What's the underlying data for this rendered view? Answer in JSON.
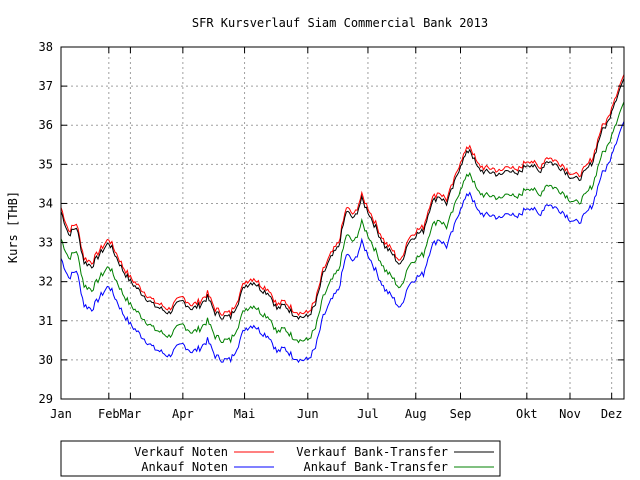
{
  "chart_data": {
    "type": "line",
    "title": "SFR Kursverlauf Siam Commercial Bank 2013",
    "xlabel": "",
    "ylabel": "Kurs [THB]",
    "ylim": [
      29,
      38
    ],
    "yticks": [
      "29",
      "30",
      "31",
      "32",
      "33",
      "34",
      "35",
      "36",
      "37",
      "38"
    ],
    "xlim": [
      0,
      365
    ],
    "grid": true,
    "legend_position": "bottom",
    "months": [
      {
        "label": "Jan",
        "day": 0
      },
      {
        "label": "Feb",
        "day": 31
      },
      {
        "label": "Mar",
        "day": 45
      },
      {
        "label": "Apr",
        "day": 79
      },
      {
        "label": "Mai",
        "day": 119
      },
      {
        "label": "Jun",
        "day": 160
      },
      {
        "label": "Jul",
        "day": 199
      },
      {
        "label": "Aug",
        "day": 230
      },
      {
        "label": "Sep",
        "day": 259
      },
      {
        "label": "Okt",
        "day": 302
      },
      {
        "label": "Nov",
        "day": 330
      },
      {
        "label": "Dez",
        "day": 357
      }
    ],
    "x": [
      0,
      5,
      10,
      15,
      20,
      25,
      31,
      35,
      40,
      45,
      50,
      55,
      60,
      65,
      70,
      75,
      79,
      85,
      90,
      95,
      100,
      105,
      110,
      115,
      119,
      125,
      130,
      135,
      140,
      145,
      150,
      155,
      160,
      165,
      170,
      175,
      180,
      185,
      190,
      195,
      199,
      205,
      210,
      215,
      220,
      225,
      230,
      235,
      240,
      245,
      250,
      255,
      259,
      265,
      270,
      275,
      280,
      285,
      290,
      295,
      302,
      305,
      310,
      315,
      320,
      325,
      330,
      335,
      340,
      345,
      350,
      355,
      357,
      360,
      365
    ],
    "series": [
      {
        "name": "Verkauf Noten",
        "color": "#ff0000",
        "values": [
          33.9,
          33.3,
          33.5,
          32.6,
          32.5,
          32.8,
          33.1,
          32.8,
          32.4,
          32.1,
          31.9,
          31.7,
          31.5,
          31.4,
          31.3,
          31.5,
          31.6,
          31.4,
          31.5,
          31.7,
          31.3,
          31.2,
          31.2,
          31.6,
          32.0,
          32.1,
          31.9,
          31.8,
          31.4,
          31.5,
          31.3,
          31.2,
          31.2,
          31.5,
          32.3,
          32.7,
          33.0,
          33.9,
          33.7,
          34.2,
          33.9,
          33.4,
          33.0,
          32.8,
          32.5,
          33.1,
          33.3,
          33.4,
          34.1,
          34.3,
          34.1,
          34.6,
          35.1,
          35.5,
          35.0,
          34.9,
          34.9,
          34.8,
          35.0,
          34.8,
          35.1,
          35.1,
          34.9,
          35.2,
          35.1,
          35.0,
          34.8,
          34.7,
          34.9,
          35.2,
          35.9,
          36.2,
          36.5,
          36.8,
          37.3
        ]
      },
      {
        "name": "Verkauf Bank-Transfer",
        "color": "#000000",
        "values": [
          33.8,
          33.2,
          33.4,
          32.5,
          32.4,
          32.7,
          33.0,
          32.7,
          32.3,
          32.0,
          31.8,
          31.6,
          31.4,
          31.3,
          31.2,
          31.4,
          31.5,
          31.3,
          31.4,
          31.6,
          31.2,
          31.1,
          31.1,
          31.5,
          31.9,
          32.0,
          31.8,
          31.7,
          31.3,
          31.4,
          31.2,
          31.1,
          31.1,
          31.4,
          32.2,
          32.6,
          32.9,
          33.8,
          33.6,
          34.1,
          33.8,
          33.3,
          32.9,
          32.7,
          32.4,
          33.0,
          33.2,
          33.3,
          34.0,
          34.2,
          34.0,
          34.5,
          35.0,
          35.4,
          34.9,
          34.8,
          34.8,
          34.7,
          34.9,
          34.7,
          35.0,
          35.0,
          34.8,
          35.1,
          35.0,
          34.9,
          34.7,
          34.6,
          34.8,
          35.1,
          35.8,
          36.1,
          36.4,
          36.7,
          37.2
        ]
      },
      {
        "name": "Ankauf Bank-Transfer",
        "color": "#008000",
        "values": [
          33.1,
          32.6,
          32.8,
          31.9,
          31.8,
          32.1,
          32.4,
          32.1,
          31.7,
          31.4,
          31.2,
          31.0,
          30.8,
          30.7,
          30.6,
          30.8,
          30.9,
          30.7,
          30.8,
          31.0,
          30.6,
          30.5,
          30.5,
          30.9,
          31.3,
          31.4,
          31.2,
          31.1,
          30.7,
          30.8,
          30.6,
          30.5,
          30.5,
          30.8,
          31.6,
          32.0,
          32.3,
          33.2,
          33.0,
          33.5,
          33.2,
          32.7,
          32.3,
          32.1,
          31.8,
          32.4,
          32.6,
          32.7,
          33.4,
          33.6,
          33.4,
          33.9,
          34.4,
          34.8,
          34.3,
          34.2,
          34.2,
          34.1,
          34.3,
          34.1,
          34.4,
          34.4,
          34.2,
          34.5,
          34.4,
          34.3,
          34.1,
          34.0,
          34.2,
          34.5,
          35.2,
          35.5,
          35.8,
          36.1,
          36.6
        ]
      },
      {
        "name": "Ankauf Noten",
        "color": "#0000ff",
        "values": [
          32.6,
          32.1,
          32.3,
          31.4,
          31.3,
          31.6,
          31.9,
          31.6,
          31.2,
          30.9,
          30.7,
          30.5,
          30.3,
          30.2,
          30.1,
          30.3,
          30.4,
          30.2,
          30.3,
          30.5,
          30.1,
          30.0,
          30.0,
          30.4,
          30.8,
          30.9,
          30.7,
          30.6,
          30.2,
          30.3,
          30.1,
          30.0,
          30.0,
          30.3,
          31.1,
          31.5,
          31.8,
          32.7,
          32.5,
          33.0,
          32.7,
          32.2,
          31.8,
          31.6,
          31.3,
          31.9,
          32.1,
          32.2,
          32.9,
          33.1,
          32.9,
          33.4,
          33.9,
          34.3,
          33.8,
          33.7,
          33.7,
          33.6,
          33.8,
          33.6,
          33.9,
          33.9,
          33.7,
          34.0,
          33.9,
          33.8,
          33.6,
          33.5,
          33.7,
          34.0,
          34.7,
          35.0,
          35.3,
          35.6,
          36.1
        ]
      }
    ],
    "legend": [
      {
        "label": "Verkauf Noten",
        "color": "#ff0000"
      },
      {
        "label": "Verkauf Bank-Transfer",
        "color": "#000000"
      },
      {
        "label": "Ankauf Noten",
        "color": "#0000ff"
      },
      {
        "label": "Ankauf Bank-Transfer",
        "color": "#008000"
      }
    ]
  }
}
